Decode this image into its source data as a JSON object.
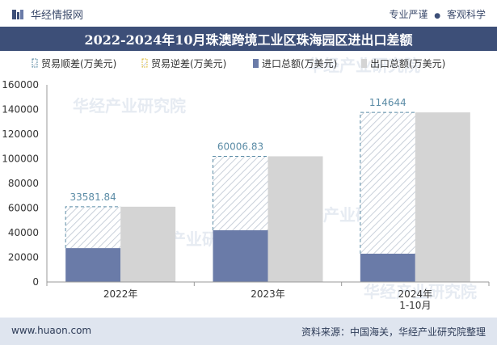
{
  "header": {
    "brand": "华经情报网",
    "tagline_left": "专业严谨",
    "tagline_sep": "●",
    "tagline_right": "客观科学"
  },
  "footer": {
    "website": "www.huaon.com",
    "source": "资料来源：中国海关，华经产业研究院整理"
  },
  "watermark": "华经产业研究院",
  "colors": {
    "header_bg": "#3d4f78",
    "import": "#6a7ba8",
    "export": "#d4d4d4",
    "surplus_hatch": "#c9d0da",
    "surplus_border": "#5b8ca6"
  },
  "chart_data": {
    "type": "bar",
    "title": "2022-2024年10月珠澳跨境工业区珠海园区进出口差额",
    "categories": [
      "2022年",
      "2023年",
      "2024年\n1-10月"
    ],
    "series": [
      {
        "name": "贸易顺差(万美元)",
        "values": [
          33581.84,
          60006.83,
          114644
        ],
        "kind": "hatched-outline"
      },
      {
        "name": "贸易逆差(万美元)",
        "values": [
          0,
          0,
          0
        ],
        "kind": "hatched-outline"
      },
      {
        "name": "进口总额(万美元)",
        "values": [
          27500,
          42000,
          23000
        ]
      },
      {
        "name": "出口总额(万美元)",
        "values": [
          61081.84,
          102006.83,
          137644
        ]
      }
    ],
    "data_labels": [
      "33581.84",
      "60006.83",
      "114644"
    ],
    "ylim": [
      0,
      160000
    ],
    "yticks": [
      0,
      20000,
      40000,
      60000,
      80000,
      100000,
      120000,
      140000,
      160000
    ],
    "xlabel": "",
    "ylabel": "",
    "legend_position": "top-left"
  }
}
